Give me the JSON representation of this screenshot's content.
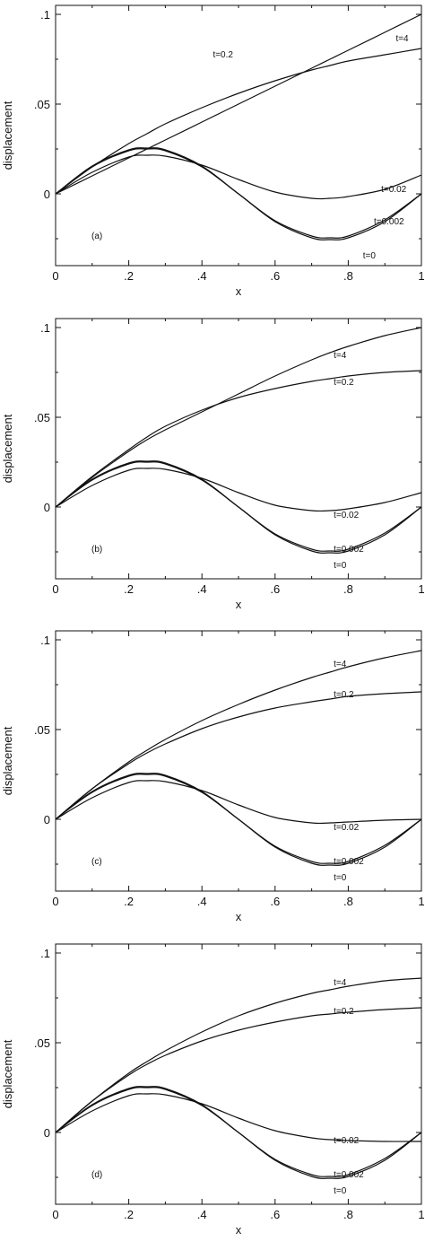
{
  "chart_data": [
    {
      "type": "line",
      "panel": "(a)",
      "xlabel": "x",
      "ylabel": "displacement",
      "xlim": [
        0,
        1
      ],
      "ylim": [
        -0.04,
        0.105
      ],
      "x_ticks": [
        0,
        0.2,
        0.4,
        0.6,
        0.8,
        1
      ],
      "x_tick_labels": [
        "0",
        ".2",
        ".4",
        ".6",
        ".8",
        "1"
      ],
      "y_ticks": [
        0,
        0.05,
        0.1
      ],
      "y_tick_labels": [
        "0",
        ".05",
        ".1"
      ],
      "grid": false,
      "x": [
        0,
        0.1,
        0.2,
        0.25,
        0.3,
        0.4,
        0.5,
        0.6,
        0.7,
        0.75,
        0.8,
        0.9,
        1.0
      ],
      "series": [
        {
          "name": "t=0",
          "values": [
            0,
            0.0155,
            0.0245,
            0.0255,
            0.0245,
            0.0155,
            0,
            -0.0155,
            -0.0245,
            -0.0255,
            -0.0245,
            -0.0155,
            0
          ]
        },
        {
          "name": "t=0.002",
          "values": [
            0,
            0.015,
            0.024,
            0.025,
            0.024,
            0.015,
            0,
            -0.015,
            -0.0235,
            -0.0245,
            -0.0235,
            -0.0145,
            0
          ]
        },
        {
          "name": "t=0.02",
          "values": [
            0,
            0.012,
            0.0205,
            0.0215,
            0.021,
            0.016,
            0.008,
            0.001,
            -0.0025,
            -0.0025,
            -0.0015,
            0.0025,
            0.0105
          ]
        },
        {
          "name": "t=0.2",
          "values": [
            0,
            0.015,
            0.028,
            0.0335,
            0.039,
            0.048,
            0.056,
            0.063,
            0.069,
            0.0715,
            0.074,
            0.0775,
            0.081
          ]
        },
        {
          "name": "t=4",
          "values": [
            0,
            0.01,
            0.02,
            0.025,
            0.03,
            0.04,
            0.05,
            0.06,
            0.07,
            0.075,
            0.08,
            0.09,
            0.1
          ]
        }
      ],
      "labels": [
        {
          "text": "t=4",
          "x": 0.93,
          "y": 0.087
        },
        {
          "text": "t=0.2",
          "x": 0.43,
          "y": 0.078
        },
        {
          "text": "t=0.02",
          "x": 0.89,
          "y": 0.003
        },
        {
          "text": "t=0.002",
          "x": 0.87,
          "y": -0.015
        },
        {
          "text": "t=0",
          "x": 0.84,
          "y": -0.034
        }
      ]
    },
    {
      "type": "line",
      "panel": "(b)",
      "xlabel": "x",
      "ylabel": "displacement",
      "xlim": [
        0,
        1
      ],
      "ylim": [
        -0.04,
        0.105
      ],
      "x_ticks": [
        0,
        0.2,
        0.4,
        0.6,
        0.8,
        1
      ],
      "x_tick_labels": [
        "0",
        ".2",
        ".4",
        ".6",
        ".8",
        "1"
      ],
      "y_ticks": [
        0,
        0.05,
        0.1
      ],
      "y_tick_labels": [
        "0",
        ".05",
        ".1"
      ],
      "grid": false,
      "x": [
        0,
        0.1,
        0.2,
        0.25,
        0.3,
        0.4,
        0.5,
        0.6,
        0.7,
        0.75,
        0.8,
        0.9,
        1.0
      ],
      "series": [
        {
          "name": "t=0",
          "values": [
            0,
            0.0155,
            0.0245,
            0.0255,
            0.0245,
            0.0155,
            0,
            -0.0155,
            -0.0245,
            -0.0255,
            -0.0245,
            -0.0155,
            0
          ]
        },
        {
          "name": "t=0.002",
          "values": [
            0,
            0.015,
            0.024,
            0.025,
            0.024,
            0.015,
            0,
            -0.015,
            -0.0235,
            -0.0245,
            -0.0235,
            -0.0145,
            0
          ]
        },
        {
          "name": "t=0.02",
          "values": [
            0,
            0.012,
            0.0205,
            0.0215,
            0.021,
            0.016,
            0.008,
            0.001,
            -0.002,
            -0.002,
            -0.001,
            0.0025,
            0.008
          ]
        },
        {
          "name": "t=0.2",
          "values": [
            0,
            0.017,
            0.032,
            0.039,
            0.045,
            0.054,
            0.061,
            0.066,
            0.07,
            0.0715,
            0.073,
            0.075,
            0.076
          ]
        },
        {
          "name": "t=4",
          "values": [
            0,
            0.0165,
            0.031,
            0.0375,
            0.043,
            0.053,
            0.063,
            0.073,
            0.082,
            0.086,
            0.0895,
            0.0955,
            0.1
          ]
        }
      ],
      "labels": [
        {
          "text": "t=4",
          "x": 0.76,
          "y": 0.085
        },
        {
          "text": "t=0.2",
          "x": 0.76,
          "y": 0.07
        },
        {
          "text": "t=0.02",
          "x": 0.76,
          "y": -0.004
        },
        {
          "text": "t=0.002",
          "x": 0.76,
          "y": -0.023
        },
        {
          "text": "t=0",
          "x": 0.76,
          "y": -0.032
        }
      ]
    },
    {
      "type": "line",
      "panel": "(c)",
      "xlabel": "x",
      "ylabel": "displacement",
      "xlim": [
        0,
        1
      ],
      "ylim": [
        -0.04,
        0.105
      ],
      "x_ticks": [
        0,
        0.2,
        0.4,
        0.6,
        0.8,
        1
      ],
      "x_tick_labels": [
        "0",
        ".2",
        ".4",
        ".6",
        ".8",
        "1"
      ],
      "y_ticks": [
        0,
        0.05,
        0.1
      ],
      "y_tick_labels": [
        "0",
        ".05",
        ".1"
      ],
      "grid": false,
      "x": [
        0,
        0.1,
        0.2,
        0.25,
        0.3,
        0.4,
        0.5,
        0.6,
        0.7,
        0.75,
        0.8,
        0.9,
        1.0
      ],
      "series": [
        {
          "name": "t=0",
          "values": [
            0,
            0.0155,
            0.0245,
            0.0255,
            0.0245,
            0.0155,
            0,
            -0.0155,
            -0.0245,
            -0.0255,
            -0.0245,
            -0.0155,
            0
          ]
        },
        {
          "name": "t=0.002",
          "values": [
            0,
            0.015,
            0.024,
            0.025,
            0.024,
            0.015,
            0,
            -0.015,
            -0.0235,
            -0.0245,
            -0.0235,
            -0.0145,
            0
          ]
        },
        {
          "name": "t=0.02",
          "values": [
            0,
            0.012,
            0.0205,
            0.0215,
            0.021,
            0.016,
            0.008,
            0.001,
            -0.002,
            -0.002,
            -0.0015,
            -0.0005,
            0.0
          ]
        },
        {
          "name": "t=0.2",
          "values": [
            0,
            0.017,
            0.031,
            0.037,
            0.042,
            0.0505,
            0.057,
            0.062,
            0.0655,
            0.067,
            0.0685,
            0.07,
            0.071
          ]
        },
        {
          "name": "t=4",
          "values": [
            0,
            0.017,
            0.032,
            0.0385,
            0.0445,
            0.055,
            0.064,
            0.072,
            0.079,
            0.082,
            0.085,
            0.09,
            0.094
          ]
        }
      ],
      "labels": [
        {
          "text": "t=4",
          "x": 0.76,
          "y": 0.087
        },
        {
          "text": "t=0.2",
          "x": 0.76,
          "y": 0.07
        },
        {
          "text": "t=0.02",
          "x": 0.76,
          "y": -0.004
        },
        {
          "text": "t=0.002",
          "x": 0.76,
          "y": -0.023
        },
        {
          "text": "t=0",
          "x": 0.76,
          "y": -0.032
        }
      ]
    },
    {
      "type": "line",
      "panel": "(d)",
      "xlabel": "x",
      "ylabel": "displacement",
      "xlim": [
        0,
        1
      ],
      "ylim": [
        -0.04,
        0.105
      ],
      "x_ticks": [
        0,
        0.2,
        0.4,
        0.6,
        0.8,
        1
      ],
      "x_tick_labels": [
        "0",
        ".2",
        ".4",
        ".6",
        ".8",
        "1"
      ],
      "y_ticks": [
        0,
        0.05,
        0.1
      ],
      "y_tick_labels": [
        "0",
        ".05",
        ".1"
      ],
      "grid": false,
      "x": [
        0,
        0.1,
        0.2,
        0.25,
        0.3,
        0.4,
        0.5,
        0.6,
        0.7,
        0.75,
        0.8,
        0.9,
        1.0
      ],
      "series": [
        {
          "name": "t=0",
          "values": [
            0,
            0.0155,
            0.0245,
            0.0255,
            0.0245,
            0.0155,
            0,
            -0.0155,
            -0.0245,
            -0.0255,
            -0.0245,
            -0.0155,
            0
          ]
        },
        {
          "name": "t=0.002",
          "values": [
            0,
            0.015,
            0.024,
            0.025,
            0.024,
            0.015,
            0,
            -0.015,
            -0.0235,
            -0.0245,
            -0.0235,
            -0.0145,
            0
          ]
        },
        {
          "name": "t=0.02",
          "values": [
            0,
            0.012,
            0.0205,
            0.0215,
            0.021,
            0.016,
            0.008,
            0.001,
            -0.003,
            -0.004,
            -0.0045,
            -0.005,
            -0.005
          ]
        },
        {
          "name": "t=0.2",
          "values": [
            0,
            0.0175,
            0.032,
            0.038,
            0.043,
            0.051,
            0.057,
            0.0615,
            0.065,
            0.066,
            0.067,
            0.0685,
            0.0695
          ]
        },
        {
          "name": "t=4",
          "values": [
            0,
            0.0175,
            0.033,
            0.0395,
            0.0455,
            0.056,
            0.065,
            0.072,
            0.0775,
            0.0795,
            0.0815,
            0.0845,
            0.086
          ]
        }
      ],
      "labels": [
        {
          "text": "t=4",
          "x": 0.76,
          "y": 0.084
        },
        {
          "text": "t=0.2",
          "x": 0.76,
          "y": 0.068
        },
        {
          "text": "t=0.02",
          "x": 0.76,
          "y": -0.004
        },
        {
          "text": "t=0.002",
          "x": 0.76,
          "y": -0.023
        },
        {
          "text": "t=0",
          "x": 0.76,
          "y": -0.032
        }
      ]
    }
  ]
}
